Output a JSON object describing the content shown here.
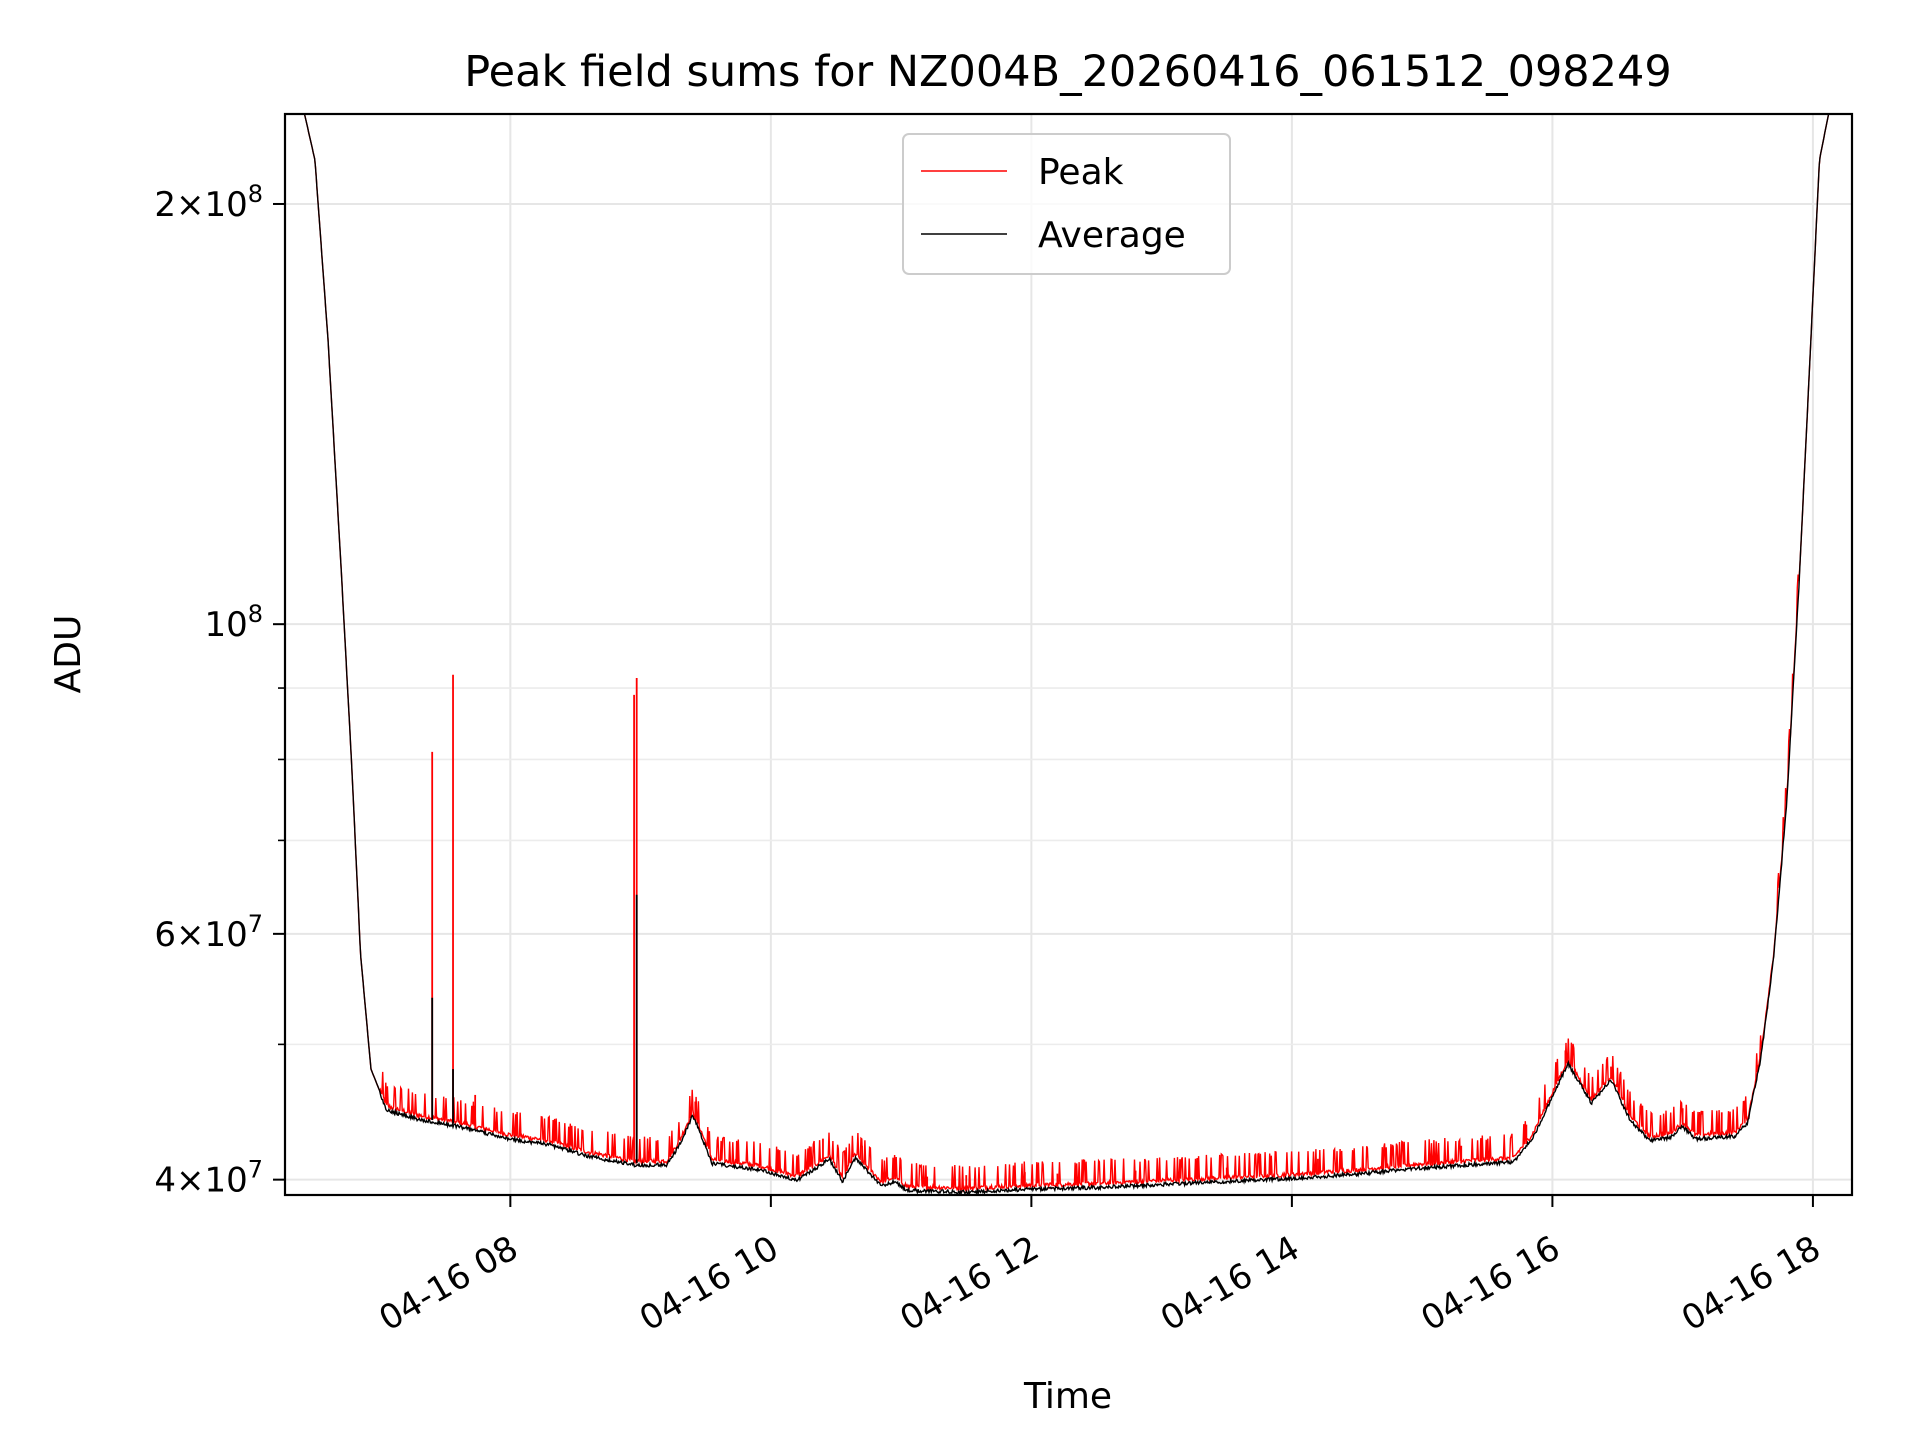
{
  "chart_data": {
    "type": "line",
    "title": "Peak field sums for NZ004B_20260416_061512_098249",
    "xlabel": "Time",
    "ylabel": "ADU",
    "yscale": "log",
    "ylim": [
      39000000,
      232000000
    ],
    "xlim_hours": [
      6.27,
      18.3
    ],
    "grid": true,
    "legend": {
      "position": "top-center",
      "entries": [
        "Peak",
        "Average"
      ]
    },
    "x_ticks": [
      {
        "hour": 8,
        "label": "04-16 08"
      },
      {
        "hour": 10,
        "label": "04-16 10"
      },
      {
        "hour": 12,
        "label": "04-16 12"
      },
      {
        "hour": 14,
        "label": "04-16 14"
      },
      {
        "hour": 16,
        "label": "04-16 16"
      },
      {
        "hour": 18,
        "label": "04-16 18"
      }
    ],
    "y_major_ticks": [
      {
        "value": 40000000,
        "mant": "4",
        "exp": "7"
      },
      {
        "value": 60000000,
        "mant": "6",
        "exp": "7"
      },
      {
        "value": 100000000,
        "mant": "",
        "exp": "8"
      },
      {
        "value": 200000000,
        "mant": "2",
        "exp": "8"
      }
    ],
    "y_minor_ticks": [
      50000000,
      70000000,
      80000000,
      90000000
    ],
    "series": [
      {
        "name": "Average",
        "color": "#000000",
        "points": [
          [
            6.27,
            232000000
          ],
          [
            6.42,
            232000000
          ],
          [
            6.5,
            215000000
          ],
          [
            6.6,
            160000000
          ],
          [
            6.7,
            110000000
          ],
          [
            6.78,
            80000000
          ],
          [
            6.85,
            58000000
          ],
          [
            6.93,
            48000000
          ],
          [
            7.05,
            45000000
          ],
          [
            7.3,
            44300000
          ],
          [
            7.6,
            43800000
          ],
          [
            8.0,
            42900000
          ],
          [
            8.3,
            42500000
          ],
          [
            8.6,
            41700000
          ],
          [
            8.95,
            41100000
          ],
          [
            9.2,
            41100000
          ],
          [
            9.3,
            42500000
          ],
          [
            9.4,
            44600000
          ],
          [
            9.45,
            43500000
          ],
          [
            9.55,
            41200000
          ],
          [
            9.9,
            40800000
          ],
          [
            10.2,
            40100000
          ],
          [
            10.35,
            40900000
          ],
          [
            10.45,
            41500000
          ],
          [
            10.55,
            40000000
          ],
          [
            10.65,
            41600000
          ],
          [
            10.75,
            40600000
          ],
          [
            10.85,
            39700000
          ],
          [
            10.95,
            40000000
          ],
          [
            11.05,
            39400000
          ],
          [
            11.5,
            39300000
          ],
          [
            12.0,
            39500000
          ],
          [
            12.5,
            39600000
          ],
          [
            13.0,
            39800000
          ],
          [
            13.5,
            40000000
          ],
          [
            14.0,
            40200000
          ],
          [
            14.5,
            40500000
          ],
          [
            15.0,
            40900000
          ],
          [
            15.5,
            41200000
          ],
          [
            15.7,
            41300000
          ],
          [
            15.85,
            43000000
          ],
          [
            16.0,
            46000000
          ],
          [
            16.12,
            48600000
          ],
          [
            16.3,
            45500000
          ],
          [
            16.45,
            47300000
          ],
          [
            16.6,
            44200000
          ],
          [
            16.75,
            42800000
          ],
          [
            16.9,
            43000000
          ],
          [
            17.0,
            43800000
          ],
          [
            17.1,
            42900000
          ],
          [
            17.4,
            43100000
          ],
          [
            17.5,
            44100000
          ],
          [
            17.6,
            49000000
          ],
          [
            17.7,
            58000000
          ],
          [
            17.8,
            75000000
          ],
          [
            17.9,
            110000000
          ],
          [
            17.97,
            150000000
          ],
          [
            18.05,
            215000000
          ],
          [
            18.12,
            232000000
          ],
          [
            18.3,
            232000000
          ]
        ]
      },
      {
        "name": "Peak",
        "color": "#ff0000",
        "spikes": [
          [
            7.4,
            81000000
          ],
          [
            7.56,
            92000000
          ],
          [
            7.73,
            46000000
          ],
          [
            8.45,
            42500000
          ],
          [
            8.95,
            89000000
          ],
          [
            8.97,
            91500000
          ],
          [
            9.42,
            45500000
          ],
          [
            10.05,
            41800000
          ],
          [
            10.4,
            42800000
          ],
          [
            10.7,
            42300000
          ],
          [
            11.2,
            40200000
          ],
          [
            11.5,
            40300000
          ],
          [
            11.95,
            40500000
          ],
          [
            12.2,
            40400000
          ],
          [
            12.8,
            40600000
          ],
          [
            13.5,
            40800000
          ],
          [
            14.2,
            41400000
          ],
          [
            14.7,
            41700000
          ],
          [
            15.3,
            42300000
          ],
          [
            15.8,
            43800000
          ],
          [
            16.1,
            49500000
          ],
          [
            16.45,
            48200000
          ],
          [
            17.0,
            45000000
          ],
          [
            17.3,
            44700000
          ],
          [
            17.65,
            53000000
          ]
        ]
      }
    ]
  }
}
